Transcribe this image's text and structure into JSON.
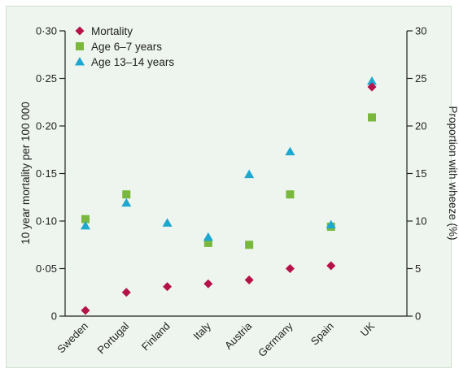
{
  "chart_data": {
    "type": "scatter",
    "categories": [
      "Sweden",
      "Portugal",
      "Finland",
      "Italy",
      "Austria",
      "Germany",
      "Spain",
      "UK"
    ],
    "ylabel": "10 year mortality per 100 000",
    "y2label": "Proportion with wheeze (%)",
    "ylim": [
      0,
      0.3
    ],
    "y2lim": [
      0,
      30
    ],
    "yticks": [
      "0",
      "0·05",
      "0·10",
      "0·15",
      "0·20",
      "0·25",
      "0·30"
    ],
    "y2ticks": [
      "0",
      "5",
      "10",
      "15",
      "20",
      "25",
      "30"
    ],
    "legend_position": "top-left",
    "series": [
      {
        "name": "Mortality",
        "axis": "left",
        "marker": "diamond",
        "color": "#b5124a",
        "values": [
          0.006,
          0.025,
          0.031,
          0.034,
          0.038,
          0.05,
          0.053,
          0.241
        ]
      },
      {
        "name": "Age 6–7 years",
        "axis": "right",
        "marker": "square",
        "color": "#79b83c",
        "values": [
          10.2,
          12.8,
          null,
          7.7,
          7.5,
          12.8,
          9.4,
          20.9
        ]
      },
      {
        "name": "Age 13–14 years",
        "axis": "right",
        "marker": "triangle",
        "color": "#1ea7cf",
        "values": [
          9.5,
          11.9,
          9.8,
          8.3,
          14.9,
          17.3,
          9.6,
          24.7
        ]
      }
    ]
  }
}
